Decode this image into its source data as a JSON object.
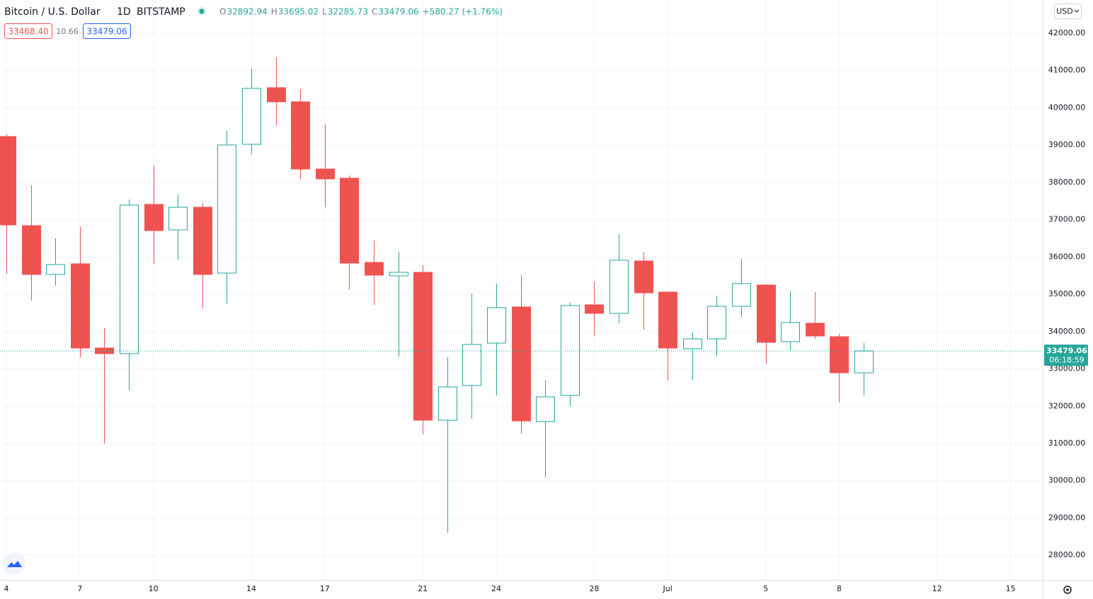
{
  "chart_data": {
    "type": "candlestick",
    "title": "Bitcoin / U.S. Dollar",
    "interval": "1D",
    "exchange": "BITSTAMP",
    "legend": [
      {
        "label": "O",
        "value": "32892.94"
      },
      {
        "label": "H",
        "value": "33695.02"
      },
      {
        "label": "L",
        "value": "32285.73"
      },
      {
        "label": "C",
        "value": "33479.06"
      }
    ],
    "change": "+580.27 (+1.76%)",
    "bid": "33468.40",
    "spread": "10.66",
    "ask": "33479.06",
    "currency": "USD",
    "last_price": {
      "value": 33479.06,
      "label": "33479.06"
    },
    "countdown": "06:18:59",
    "up_color": "#26a69a",
    "down_color": "#ef5350",
    "grid": true,
    "categories": [
      "4",
      null,
      null,
      "7",
      null,
      null,
      "10",
      null,
      null,
      null,
      "14",
      null,
      null,
      "17",
      null,
      null,
      null,
      "21",
      null,
      null,
      "24",
      null,
      null,
      null,
      "28",
      null,
      null,
      "Jul",
      null,
      null,
      null,
      "5",
      null,
      null,
      "8",
      null,
      null,
      null,
      "12",
      null,
      null,
      "15",
      null
    ],
    "open": [
      39230,
      36840,
      35531,
      35816,
      33558,
      33407,
      37409,
      36726,
      37333,
      35569,
      39022,
      40539,
      40160,
      38358,
      38111,
      35854,
      35493,
      35588,
      31623,
      32553,
      33691,
      34659,
      31585,
      32287,
      34716,
      34488,
      35892,
      35057,
      33539,
      33805,
      34678,
      35247,
      33729,
      34222,
      33862,
      32892.94,
      null,
      null,
      null,
      null,
      null,
      null,
      null
    ],
    "high": [
      39287,
      37921,
      36499,
      36802,
      34090,
      37542,
      38453,
      37675,
      37447,
      39382,
      41052,
      41355,
      40501,
      39553,
      38187,
      36442,
      36138,
      35778,
      33312,
      35019,
      35285,
      35512,
      32705,
      34772,
      35342,
      36613,
      36119,
      35070,
      33976,
      34962,
      35949,
      35270,
      35095,
      35057,
      33938,
      33695.02,
      null,
      null,
      null,
      null,
      null,
      null,
      null
    ],
    "low": [
      35550,
      34829,
      35228,
      33312,
      30997,
      32420,
      35816,
      35930,
      34621,
      34753,
      38756,
      39515,
      38092,
      37333,
      35133,
      34716,
      33331,
      31244,
      28607,
      31661,
      32287,
      31263,
      30087,
      32003,
      33881,
      34222,
      34052,
      32686,
      32705,
      33331,
      34393,
      33141,
      33501,
      33805,
      32098,
      32285.73,
      null,
      null,
      null,
      null,
      null,
      null,
      null
    ],
    "close": [
      36859,
      35531,
      35797,
      33558,
      33407,
      37390,
      36707,
      37333,
      35531,
      39003,
      40520,
      40160,
      38358,
      38092,
      35835,
      35512,
      35588,
      31623,
      32515,
      33653,
      34640,
      31604,
      32249,
      34697,
      34488,
      35911,
      35038,
      33558,
      33805,
      34678,
      35285,
      33710,
      34241,
      33881,
      32894,
      33479.06,
      null,
      null,
      null,
      null,
      null,
      null,
      null
    ],
    "ylim": [
      27340,
      42890
    ],
    "yticks": [
      {
        "value": 28000,
        "label": "28000.00"
      },
      {
        "value": 29000,
        "label": "29000.00"
      },
      {
        "value": 30000,
        "label": "30000.00"
      },
      {
        "value": 31000,
        "label": "31000.00"
      },
      {
        "value": 32000,
        "label": "32000.00"
      },
      {
        "value": 33000,
        "label": "33000.00"
      },
      {
        "value": 34000,
        "label": "34000.00"
      },
      {
        "value": 35000,
        "label": "35000.00"
      },
      {
        "value": 36000,
        "label": "36000.00"
      },
      {
        "value": 37000,
        "label": "37000.00"
      },
      {
        "value": 38000,
        "label": "38000.00"
      },
      {
        "value": 39000,
        "label": "39000.00"
      },
      {
        "value": 40000,
        "label": "40000.00"
      },
      {
        "value": 41000,
        "label": "41000.00"
      },
      {
        "value": 42000,
        "label": "42000.00"
      }
    ]
  }
}
